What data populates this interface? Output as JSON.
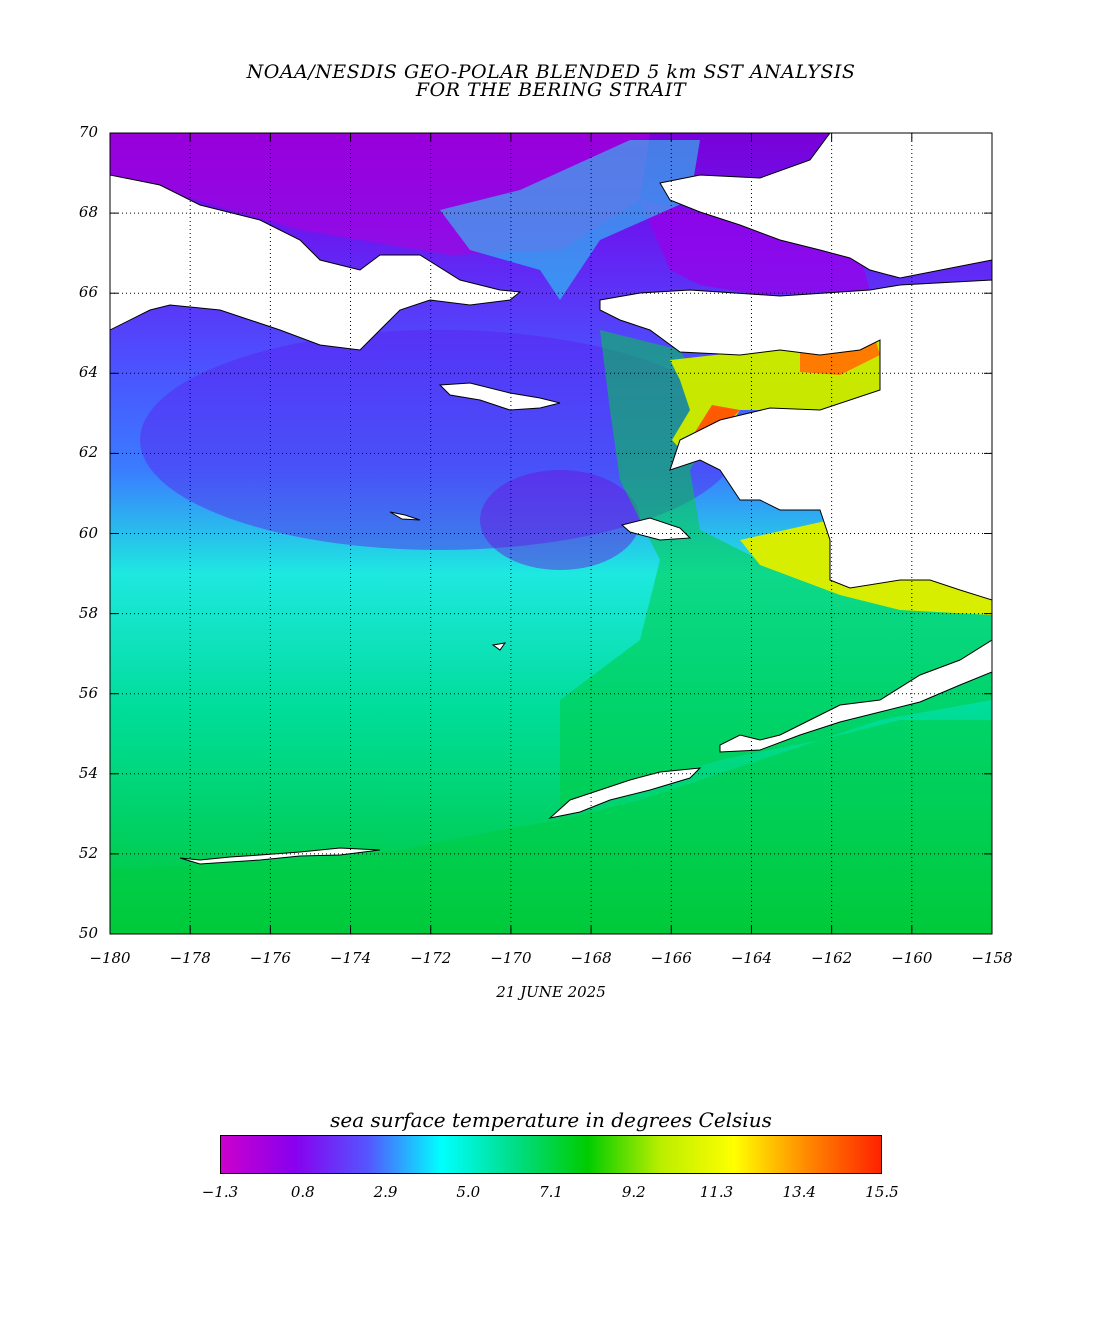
{
  "title": {
    "line1": "NOAA/NESDIS GEO-POLAR BLENDED 5 km SST ANALYSIS",
    "line2": "FOR THE BERING STRAIT"
  },
  "date": "21 JUNE 2025",
  "map": {
    "lat_ticks": [
      "70",
      "68",
      "66",
      "64",
      "62",
      "60",
      "58",
      "56",
      "54",
      "52",
      "50"
    ],
    "lon_ticks": [
      "−180",
      "−178",
      "−176",
      "−174",
      "−172",
      "−170",
      "−168",
      "−166",
      "−164",
      "−162",
      "−160",
      "−158"
    ],
    "lat_range": [
      50,
      70
    ],
    "lon_range": [
      -180,
      -158
    ],
    "grid": "dotted",
    "land_color": "#ffffff"
  },
  "legend": {
    "title": "sea surface temperature in degrees Celsius",
    "ticks": [
      "−1.3",
      "0.8",
      "2.9",
      "5.0",
      "7.1",
      "9.2",
      "11.3",
      "13.4",
      "15.5"
    ],
    "range": [
      -1.3,
      15.5
    ],
    "colors": [
      "#cc00cc",
      "#8800ee",
      "#5555ff",
      "#00ffff",
      "#00dd88",
      "#00cc00",
      "#bbee00",
      "#ffff00",
      "#ff8800",
      "#ff2200"
    ]
  }
}
